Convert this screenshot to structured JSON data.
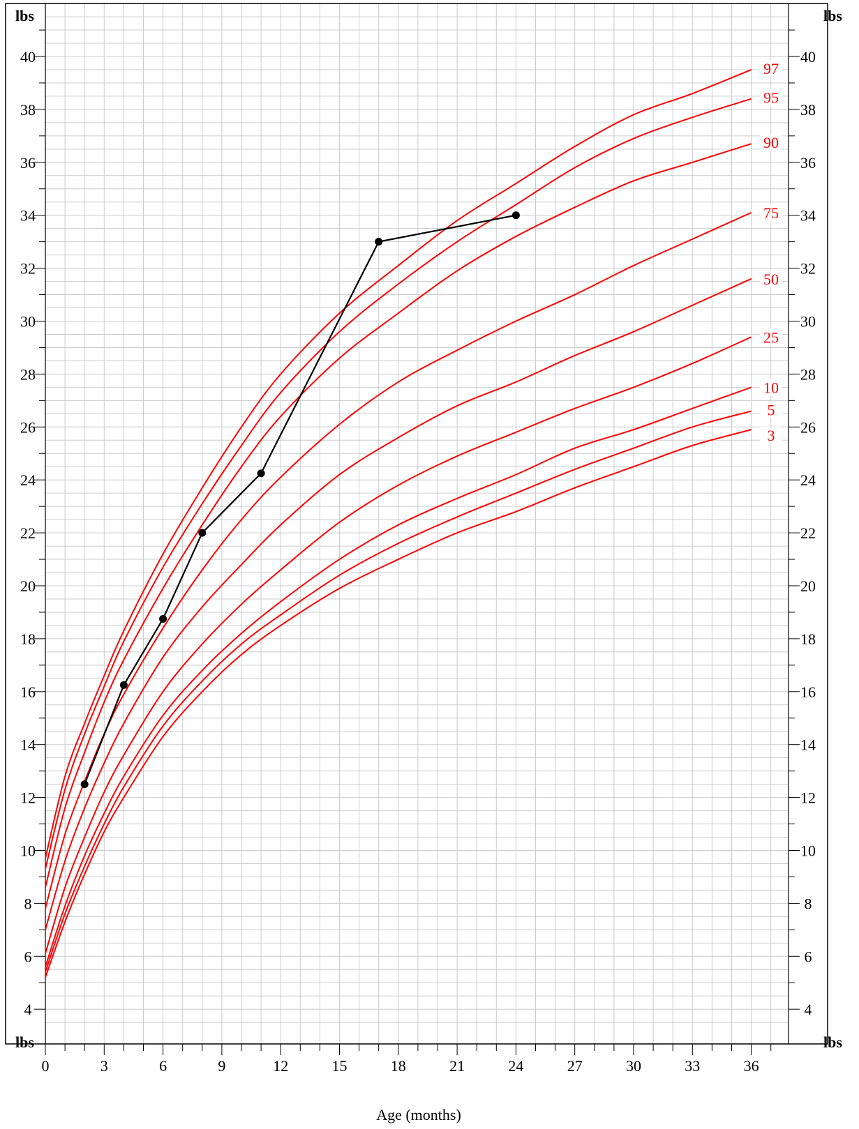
{
  "chart_data": {
    "type": "line",
    "unit_label": "lbs",
    "xlabel": "Age (months)",
    "ylabel": "",
    "xlim": [
      0,
      38.5
    ],
    "ylim": [
      3.5,
      42
    ],
    "x_ticks": [
      0,
      3,
      6,
      9,
      12,
      15,
      18,
      21,
      24,
      27,
      30,
      33,
      36
    ],
    "y_ticks": [
      4,
      6,
      8,
      10,
      12,
      14,
      16,
      18,
      20,
      22,
      24,
      26,
      28,
      30,
      32,
      34,
      36,
      38,
      40
    ],
    "grid": true,
    "colors": {
      "percentile": "#ff0000",
      "child": "#000000",
      "grid": "#cccccc"
    },
    "percentiles": [
      {
        "name": "97",
        "x": [
          0,
          1,
          2,
          3,
          4,
          6,
          8,
          10,
          12,
          15,
          18,
          21,
          24,
          27,
          30,
          33,
          36
        ],
        "values": [
          9.7,
          12.8,
          14.8,
          16.6,
          18.3,
          21.2,
          23.7,
          26.0,
          28.0,
          30.3,
          32.1,
          33.8,
          35.2,
          36.6,
          37.8,
          38.6,
          39.5
        ]
      },
      {
        "name": "95",
        "x": [
          0,
          1,
          2,
          3,
          4,
          6,
          8,
          10,
          12,
          15,
          18,
          21,
          24,
          27,
          30,
          33,
          36
        ],
        "values": [
          9.3,
          12.3,
          14.4,
          16.2,
          17.9,
          20.7,
          23.1,
          25.3,
          27.3,
          29.6,
          31.4,
          33.0,
          34.4,
          35.8,
          36.9,
          37.7,
          38.4
        ]
      },
      {
        "name": "90",
        "x": [
          0,
          1,
          2,
          3,
          4,
          6,
          8,
          10,
          12,
          15,
          18,
          21,
          24,
          27,
          30,
          33,
          36
        ],
        "values": [
          8.6,
          11.6,
          13.7,
          15.6,
          17.2,
          19.9,
          22.3,
          24.5,
          26.4,
          28.6,
          30.3,
          31.9,
          33.2,
          34.3,
          35.3,
          36.0,
          36.7
        ]
      },
      {
        "name": "75",
        "x": [
          0,
          1,
          2,
          3,
          4,
          6,
          8,
          10,
          12,
          15,
          18,
          21,
          24,
          27,
          30,
          33,
          36
        ],
        "values": [
          7.8,
          10.6,
          12.6,
          14.4,
          15.9,
          18.4,
          20.6,
          22.5,
          24.1,
          26.1,
          27.7,
          28.9,
          30.0,
          31.0,
          32.1,
          33.1,
          34.1
        ]
      },
      {
        "name": "50",
        "x": [
          0,
          1,
          2,
          3,
          4,
          6,
          8,
          10,
          12,
          15,
          18,
          21,
          24,
          27,
          30,
          33,
          36
        ],
        "values": [
          7.0,
          9.6,
          11.6,
          13.3,
          14.8,
          17.3,
          19.2,
          20.8,
          22.3,
          24.2,
          25.6,
          26.8,
          27.7,
          28.7,
          29.6,
          30.6,
          31.6
        ]
      },
      {
        "name": "25",
        "x": [
          0,
          1,
          2,
          3,
          4,
          6,
          8,
          10,
          12,
          15,
          18,
          21,
          24,
          27,
          30,
          33,
          36
        ],
        "values": [
          6.1,
          8.6,
          10.5,
          12.2,
          13.6,
          16.0,
          17.8,
          19.3,
          20.6,
          22.4,
          23.8,
          24.9,
          25.8,
          26.7,
          27.5,
          28.4,
          29.4
        ]
      },
      {
        "name": "10",
        "x": [
          0,
          1,
          2,
          3,
          4,
          6,
          8,
          10,
          12,
          15,
          18,
          21,
          24,
          27,
          30,
          33,
          36
        ],
        "values": [
          5.6,
          7.9,
          9.8,
          11.4,
          12.8,
          15.1,
          16.8,
          18.2,
          19.4,
          21.0,
          22.3,
          23.3,
          24.2,
          25.2,
          25.9,
          26.7,
          27.5
        ]
      },
      {
        "name": "5",
        "x": [
          0,
          1,
          2,
          3,
          4,
          6,
          8,
          10,
          12,
          15,
          18,
          21,
          24,
          27,
          30,
          33,
          36
        ],
        "values": [
          5.4,
          7.6,
          9.4,
          11.0,
          12.4,
          14.7,
          16.4,
          17.8,
          18.9,
          20.4,
          21.6,
          22.6,
          23.5,
          24.4,
          25.2,
          26.0,
          26.6
        ]
      },
      {
        "name": "3",
        "x": [
          0,
          1,
          2,
          3,
          4,
          6,
          8,
          10,
          12,
          15,
          18,
          21,
          24,
          27,
          30,
          33,
          36
        ],
        "values": [
          5.2,
          7.3,
          9.1,
          10.7,
          12.0,
          14.3,
          16.0,
          17.4,
          18.5,
          19.9,
          21.0,
          22.0,
          22.8,
          23.7,
          24.5,
          25.3,
          25.9
        ]
      }
    ],
    "child_series": {
      "x": [
        2,
        4,
        6,
        8,
        11,
        17,
        24
      ],
      "values": [
        12.5,
        16.25,
        18.75,
        22.0,
        24.25,
        33.0,
        34.0
      ]
    }
  }
}
